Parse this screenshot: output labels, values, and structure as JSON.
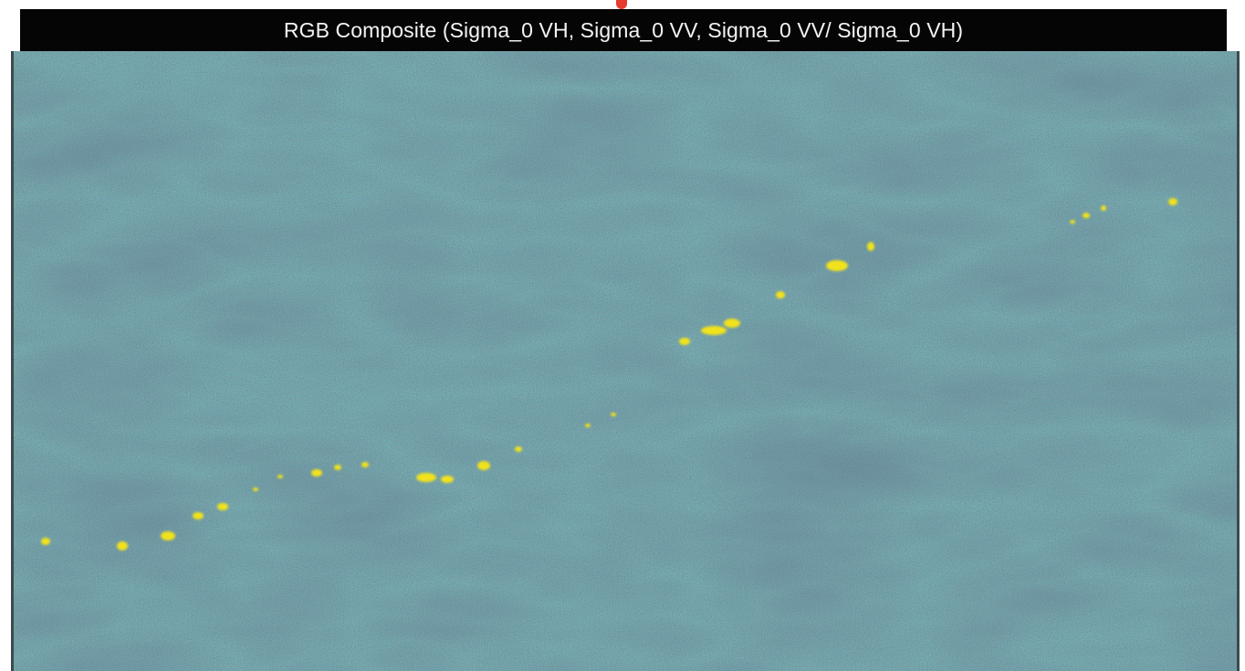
{
  "figure": {
    "title": "RGB Composite (Sigma_0 VH, Sigma_0 VV, Sigma_0 VV/ Sigma_0 VH)",
    "colors": {
      "background_sea": "#2f5a72",
      "speckle_light": "#4f8a8a",
      "speckle_dark": "#27344a",
      "target_yellow": "#f2e21a",
      "title_bg": "#050505",
      "title_text": "#f4f4f4",
      "marker": "#e63b2e"
    }
  }
}
